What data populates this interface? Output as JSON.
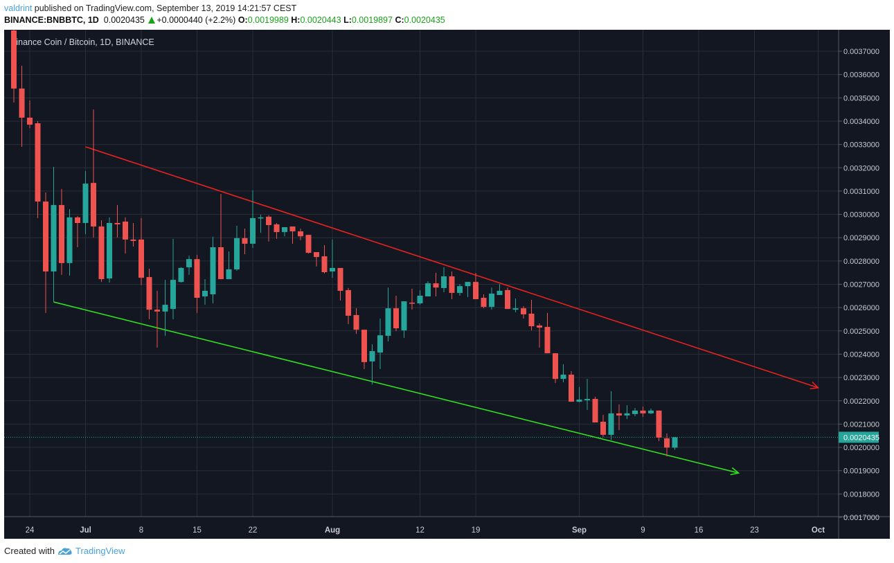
{
  "header": {
    "author": "valdrint",
    "published_text": " published on TradingView.com, September 13, 2019 14:21:57 CEST",
    "symbol": "BINANCE:BNBBTC, 1D",
    "last_price": "0.0020435",
    "change": "+0.0000440 (+2.2%)",
    "open_label": "O:",
    "open": "0.0019989",
    "high_label": "H:",
    "high": "0.0020443",
    "low_label": "L:",
    "low": "0.0019897",
    "close_label": "C:",
    "close": "0.0020435",
    "change_icon": "triangle-up-icon"
  },
  "chart_title": "Binance Coin / Bitcoin, 1D, BINANCE",
  "footer": {
    "created_with": "Created with",
    "brand": "TradingView",
    "logo_icon": "tradingview-cloud-icon"
  },
  "colors": {
    "background": "#131722",
    "grid": "#2a2e39",
    "up": "#26a69a",
    "down": "#ef5350",
    "resistance": "#e8231f",
    "support": "#31e01f",
    "last_price": "#26a69a",
    "author": "#4aa3d6"
  },
  "chart_data": {
    "type": "candlestick",
    "title": "Binance Coin / Bitcoin, 1D, BINANCE",
    "ylim": [
      0.0017,
      0.00379
    ],
    "xlim": [
      "2019-06-21",
      "2019-10-03"
    ],
    "grid": true,
    "y_ticks": [
      "0.0037000",
      "0.0036000",
      "0.0035000",
      "0.0034000",
      "0.0033000",
      "0.0032000",
      "0.0031000",
      "0.0030000",
      "0.0029000",
      "0.0028000",
      "0.0027000",
      "0.0026000",
      "0.0025000",
      "0.0024000",
      "0.0023000",
      "0.0022000",
      "0.0021000",
      "0.0020000",
      "0.0019000",
      "0.0018000",
      "0.0017000"
    ],
    "x_ticks": [
      {
        "date": "2019-06-24",
        "label": "24"
      },
      {
        "date": "2019-07-01",
        "label": "Jul"
      },
      {
        "date": "2019-07-08",
        "label": "8"
      },
      {
        "date": "2019-07-15",
        "label": "15"
      },
      {
        "date": "2019-07-22",
        "label": "22"
      },
      {
        "date": "2019-08-01",
        "label": "Aug"
      },
      {
        "date": "2019-08-12",
        "label": "12"
      },
      {
        "date": "2019-08-19",
        "label": "19"
      },
      {
        "date": "2019-09-01",
        "label": "Sep"
      },
      {
        "date": "2019-09-09",
        "label": "9"
      },
      {
        "date": "2019-09-16",
        "label": "16"
      },
      {
        "date": "2019-09-23",
        "label": "23"
      },
      {
        "date": "2019-10-01",
        "label": "Oct"
      }
    ],
    "last_price_label": "0.0020435",
    "last_price": 0.0020435,
    "candle_fields": [
      "date",
      "open",
      "high",
      "low",
      "close"
    ],
    "candles": [
      [
        "2019-06-22",
        0.003789,
        0.003801,
        0.00348,
        0.00354
      ],
      [
        "2019-06-23",
        0.00354,
        0.003638,
        0.00329,
        0.003415
      ],
      [
        "2019-06-24",
        0.003415,
        0.003489,
        0.00337,
        0.003385
      ],
      [
        "2019-06-25",
        0.003391,
        0.0034,
        0.002984,
        0.003055
      ],
      [
        "2019-06-26",
        0.003055,
        0.003094,
        0.002577,
        0.002755
      ],
      [
        "2019-06-27",
        0.002755,
        0.003204,
        0.002624,
        0.00304
      ],
      [
        "2019-06-28",
        0.00304,
        0.003109,
        0.00274,
        0.002791
      ],
      [
        "2019-06-29",
        0.002791,
        0.003022,
        0.002737,
        0.002987
      ],
      [
        "2019-06-30",
        0.002987,
        0.002993,
        0.002859,
        0.002963
      ],
      [
        "2019-07-01",
        0.002963,
        0.003186,
        0.002915,
        0.003132
      ],
      [
        "2019-07-02",
        0.003135,
        0.00345,
        0.002901,
        0.002948
      ],
      [
        "2019-07-03",
        0.002948,
        0.002975,
        0.00271,
        0.002722
      ],
      [
        "2019-07-04",
        0.002725,
        0.002987,
        0.002707,
        0.002963
      ],
      [
        "2019-07-05",
        0.002963,
        0.00304,
        0.002901,
        0.002957
      ],
      [
        "2019-07-06",
        0.002969,
        0.002987,
        0.002832,
        0.002892
      ],
      [
        "2019-07-07",
        0.002892,
        0.002963,
        0.002862,
        0.002886
      ],
      [
        "2019-07-08",
        0.002892,
        0.002984,
        0.002696,
        0.002728
      ],
      [
        "2019-07-09",
        0.002731,
        0.002767,
        0.00255,
        0.002591
      ],
      [
        "2019-07-10",
        0.002591,
        0.002672,
        0.002428,
        0.002583
      ],
      [
        "2019-07-11",
        0.002583,
        0.002719,
        0.002479,
        0.002612
      ],
      [
        "2019-07-12",
        0.002594,
        0.002895,
        0.00255,
        0.002719
      ],
      [
        "2019-07-13",
        0.00271,
        0.002773,
        0.002707,
        0.00277
      ],
      [
        "2019-07-14",
        0.002773,
        0.002823,
        0.00274,
        0.002808
      ],
      [
        "2019-07-15",
        0.002808,
        0.002826,
        0.002577,
        0.002642
      ],
      [
        "2019-07-16",
        0.002648,
        0.002722,
        0.002612,
        0.002672
      ],
      [
        "2019-07-17",
        0.002657,
        0.002904,
        0.002618,
        0.002859
      ],
      [
        "2019-07-18",
        0.002859,
        0.003088,
        0.002722,
        0.002722
      ],
      [
        "2019-07-19",
        0.002722,
        0.002841,
        0.002722,
        0.002764
      ],
      [
        "2019-07-20",
        0.002764,
        0.002951,
        0.002758,
        0.002898
      ],
      [
        "2019-07-21",
        0.002898,
        0.002939,
        0.002829,
        0.002874
      ],
      [
        "2019-07-22",
        0.002874,
        0.003103,
        0.002856,
        0.002984
      ],
      [
        "2019-07-23",
        0.002984,
        0.002999,
        0.002921,
        0.002987
      ],
      [
        "2019-07-24",
        0.00299,
        0.002996,
        0.002883,
        0.002954
      ],
      [
        "2019-07-25",
        0.002957,
        0.002963,
        0.002895,
        0.002924
      ],
      [
        "2019-07-26",
        0.002924,
        0.002945,
        0.002906,
        0.002945
      ],
      [
        "2019-07-27",
        0.002948,
        0.002948,
        0.002874,
        0.002927
      ],
      [
        "2019-07-28",
        0.002927,
        0.002939,
        0.002889,
        0.002906
      ],
      [
        "2019-07-29",
        0.002912,
        0.002912,
        0.002832,
        0.002835
      ],
      [
        "2019-07-30",
        0.002838,
        0.002838,
        0.002776,
        0.002817
      ],
      [
        "2019-07-31",
        0.00282,
        0.002868,
        0.002746,
        0.002752
      ],
      [
        "2019-08-01",
        0.002755,
        0.002892,
        0.002728,
        0.00277
      ],
      [
        "2019-08-02",
        0.00277,
        0.00277,
        0.00263,
        0.002672
      ],
      [
        "2019-08-03",
        0.002675,
        0.002684,
        0.002529,
        0.002565
      ],
      [
        "2019-08-04",
        0.002568,
        0.002597,
        0.002487,
        0.002505
      ],
      [
        "2019-08-05",
        0.002505,
        0.002505,
        0.002336,
        0.002366
      ],
      [
        "2019-08-06",
        0.002369,
        0.002443,
        0.00227,
        0.002413
      ],
      [
        "2019-08-07",
        0.002407,
        0.002553,
        0.002336,
        0.002481
      ],
      [
        "2019-08-08",
        0.002479,
        0.002686,
        0.002455,
        0.002597
      ],
      [
        "2019-08-09",
        0.002597,
        0.002651,
        0.002499,
        0.002511
      ],
      [
        "2019-08-10",
        0.002502,
        0.002627,
        0.00247,
        0.002627
      ],
      [
        "2019-08-11",
        0.002621,
        0.002681,
        0.002591,
        0.002618
      ],
      [
        "2019-08-12",
        0.002618,
        0.002675,
        0.002612,
        0.002651
      ],
      [
        "2019-08-13",
        0.002648,
        0.002713,
        0.002648,
        0.002704
      ],
      [
        "2019-08-14",
        0.002704,
        0.002749,
        0.002648,
        0.002686
      ],
      [
        "2019-08-15",
        0.002684,
        0.002773,
        0.002666,
        0.002734
      ],
      [
        "2019-08-16",
        0.002734,
        0.002755,
        0.002636,
        0.002663
      ],
      [
        "2019-08-17",
        0.002663,
        0.002701,
        0.002651,
        0.002692
      ],
      [
        "2019-08-18",
        0.002692,
        0.00271,
        0.002645,
        0.00271
      ],
      [
        "2019-08-19",
        0.00271,
        0.002749,
        0.002636,
        0.002636
      ],
      [
        "2019-08-20",
        0.002642,
        0.002657,
        0.002597,
        0.002603
      ],
      [
        "2019-08-21",
        0.002603,
        0.002686,
        0.002591,
        0.00266
      ],
      [
        "2019-08-22",
        0.002654,
        0.002701,
        0.002654,
        0.002672
      ],
      [
        "2019-08-23",
        0.002675,
        0.002686,
        0.002594,
        0.002594
      ],
      [
        "2019-08-24",
        0.002591,
        0.002639,
        0.00258,
        0.002597
      ],
      [
        "2019-08-25",
        0.002597,
        0.002606,
        0.002553,
        0.002571
      ],
      [
        "2019-08-26",
        0.002574,
        0.002633,
        0.002502,
        0.00252
      ],
      [
        "2019-08-27",
        0.002523,
        0.002532,
        0.002428,
        0.002514
      ],
      [
        "2019-08-28",
        0.002517,
        0.002577,
        0.002404,
        0.002404
      ],
      [
        "2019-08-29",
        0.002404,
        0.002404,
        0.002276,
        0.002294
      ],
      [
        "2019-08-30",
        0.002294,
        0.002357,
        0.002279,
        0.002312
      ],
      [
        "2019-08-31",
        0.002312,
        0.002327,
        0.002196,
        0.002196
      ],
      [
        "2019-09-01",
        0.002196,
        0.002259,
        0.002193,
        0.002205
      ],
      [
        "2019-09-02",
        0.002202,
        0.002294,
        0.002161,
        0.002208
      ],
      [
        "2019-09-03",
        0.002208,
        0.002217,
        0.002107,
        0.002107
      ],
      [
        "2019-09-04",
        0.00211,
        0.00214,
        0.002045,
        0.002054
      ],
      [
        "2019-09-05",
        0.002054,
        0.002241,
        0.002033,
        0.002146
      ],
      [
        "2019-09-06",
        0.002146,
        0.002184,
        0.002074,
        0.002137
      ],
      [
        "2019-09-07",
        0.002137,
        0.002181,
        0.002122,
        0.002146
      ],
      [
        "2019-09-08",
        0.002143,
        0.002169,
        0.002134,
        0.002158
      ],
      [
        "2019-09-09",
        0.002158,
        0.002175,
        0.002131,
        0.002146
      ],
      [
        "2019-09-10",
        0.002146,
        0.002167,
        0.002143,
        0.002158
      ],
      [
        "2019-09-11",
        0.002158,
        0.002158,
        0.002027,
        0.002042
      ],
      [
        "2019-09-12",
        0.002039,
        0.00206,
        0.001961,
        0.001999
      ],
      [
        "2019-09-13",
        0.0019989,
        0.0020443,
        0.0019897,
        0.0020435
      ]
    ],
    "trendlines": [
      {
        "role": "resistance",
        "color": "#e8231f",
        "from": [
          "2019-07-01",
          0.00329
        ],
        "to": [
          "2019-10-01",
          0.002256
        ],
        "arrow": true
      },
      {
        "role": "support",
        "color": "#31e01f",
        "from": [
          "2019-06-27",
          0.002624
        ],
        "to": [
          "2019-09-21",
          0.00189
        ],
        "arrow": true
      }
    ]
  }
}
